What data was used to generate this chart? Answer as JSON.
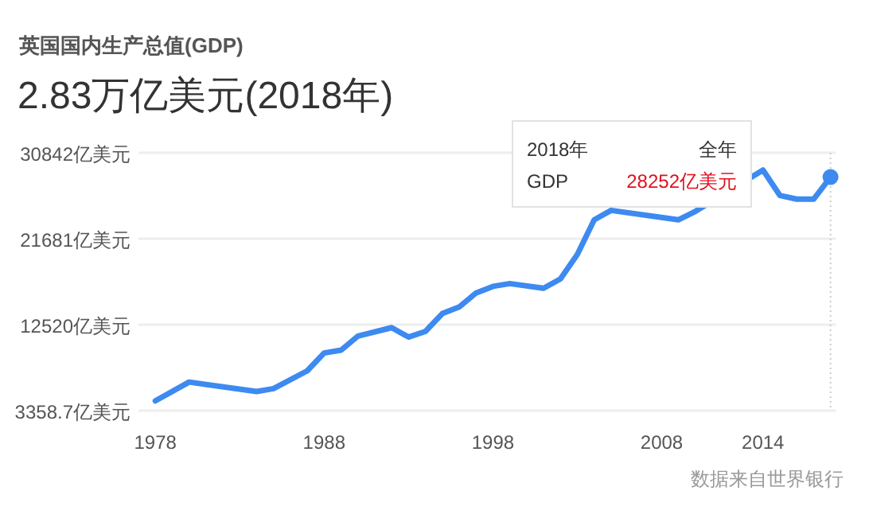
{
  "chart_data": {
    "type": "line",
    "title": "英国国内生产总值(GDP)",
    "subtitle": "2.83万亿美元(2018年)",
    "x": [
      1978,
      1980,
      1984,
      1985,
      1987,
      1988,
      1989,
      1990,
      1992,
      1993,
      1994,
      1995,
      1996,
      1997,
      1998,
      1999,
      2001,
      2002,
      2003,
      2004,
      2005,
      2009,
      2010,
      2014,
      2015,
      2016,
      2017,
      2018
    ],
    "series": [
      {
        "name": "GDP",
        "color": "#3d8af0",
        "values": [
          4400,
          6400,
          5400,
          5700,
          7600,
          9500,
          9800,
          11300,
          12200,
          11200,
          11800,
          13700,
          14400,
          15900,
          16600,
          16900,
          16400,
          17400,
          20000,
          23700,
          24700,
          23700,
          24600,
          29000,
          26300,
          25900,
          25900,
          28252
        ]
      }
    ],
    "ylim": [
      3358.7,
      30842
    ],
    "yticks": [
      {
        "value": 3358.7,
        "label": "3358.7亿美元"
      },
      {
        "value": 12520,
        "label": "12520亿美元"
      },
      {
        "value": 21681,
        "label": "21681亿美元"
      },
      {
        "value": 30842,
        "label": "30842亿美元"
      }
    ],
    "xlim": [
      1977,
      2018.3
    ],
    "xticks": [
      1978,
      1988,
      1998,
      2008,
      2014
    ],
    "grid": "y",
    "ref_lines": [
      {
        "axis": "x",
        "value": 2018,
        "line_style": "dotted",
        "color": "#cccccc"
      }
    ],
    "annotations": [
      "2018年",
      "全年",
      "28252亿美元",
      "数据来自世界银行"
    ]
  }
}
